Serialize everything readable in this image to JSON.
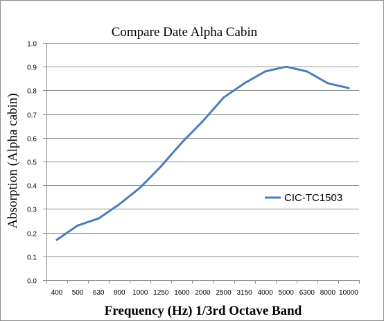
{
  "chart_data": {
    "type": "line",
    "title": "Compare Date Alpha Cabin",
    "xlabel": "Frequency (Hz) 1/3rd Octave Band",
    "ylabel": "Absorption (Alpha cabin)",
    "categories": [
      "400",
      "500",
      "630",
      "800",
      "1000",
      "1250",
      "1600",
      "2000",
      "2500",
      "3150",
      "4000",
      "5000",
      "6300",
      "8000",
      "10000"
    ],
    "ylim": [
      0,
      1.0
    ],
    "y_ticks": [
      "0.0",
      "0.1",
      "0.2",
      "0.3",
      "0.4",
      "0.5",
      "0.6",
      "0.7",
      "0.8",
      "0.9",
      "1.0"
    ],
    "grid": "horizontal",
    "legend_position": "right",
    "series": [
      {
        "name": "CIC-TC1503",
        "color": "#4a7ebb",
        "values": [
          0.17,
          0.23,
          0.26,
          0.32,
          0.39,
          0.48,
          0.58,
          0.67,
          0.77,
          0.83,
          0.88,
          0.9,
          0.88,
          0.83,
          0.81
        ]
      }
    ]
  }
}
